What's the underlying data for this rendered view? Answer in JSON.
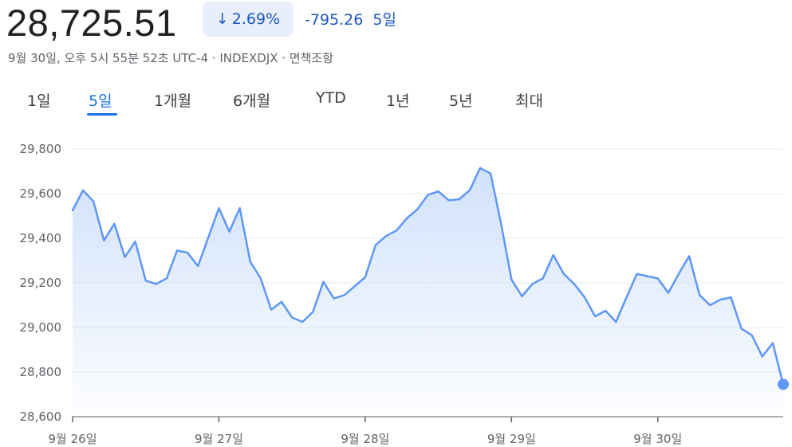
{
  "header": {
    "price": "28,725.51",
    "change_percent": "2.69%",
    "change_abs": "-795.26",
    "change_period": "5일",
    "meta": "9월 30일, 오후 5시 55분 52초 UTC-4 · INDEXDJX · 면책조항",
    "direction": "down",
    "accent_color": "#1a56c4"
  },
  "tabs": [
    {
      "label": "1일",
      "active": false
    },
    {
      "label": "5일",
      "active": true
    },
    {
      "label": "1개월",
      "active": false
    },
    {
      "label": "6개월",
      "active": false
    },
    {
      "label": "YTD",
      "active": false
    },
    {
      "label": "1년",
      "active": false
    },
    {
      "label": "5년",
      "active": false
    },
    {
      "label": "최대",
      "active": false
    }
  ],
  "chart_data": {
    "type": "area",
    "title": "",
    "xlabel": "",
    "ylabel": "",
    "ylim": [
      28600,
      29800
    ],
    "yticks": [
      28600,
      28800,
      29000,
      29200,
      29400,
      29600,
      29800
    ],
    "ytick_labels": [
      "28,600",
      "28,800",
      "29,000",
      "29,200",
      "29,400",
      "29,600",
      "29,800"
    ],
    "xticks": [
      {
        "label": "9월 26일",
        "index": 0
      },
      {
        "label": "9월 27일",
        "index": 14
      },
      {
        "label": "9월 28일",
        "index": 28
      },
      {
        "label": "9월 29일",
        "index": 42
      },
      {
        "label": "9월 30일",
        "index": 56
      }
    ],
    "grid": true,
    "line_color": "#5e97f6",
    "fill_color": "#d2e3fc",
    "series": [
      {
        "values": [
          29525,
          29615,
          29565,
          29390,
          29465,
          29315,
          29385,
          29210,
          29195,
          29220,
          29345,
          29335,
          29275,
          29405,
          29535,
          29430,
          29535,
          29295,
          29220,
          29080,
          29115,
          29045,
          29025,
          29070,
          29205,
          29130,
          29145,
          29185,
          29225,
          29370,
          29410,
          29435,
          29490,
          29530,
          29595,
          29610,
          29570,
          29575,
          29615,
          29715,
          29690,
          29465,
          29215,
          29140,
          29195,
          29220,
          29325,
          29240,
          29195,
          29135,
          29050,
          29075,
          29025,
          29135,
          29240,
          29230,
          29220,
          29155,
          29240,
          29320,
          29145,
          29100,
          29125,
          29135,
          28995,
          28965,
          28870,
          28930,
          28745
        ]
      }
    ]
  }
}
